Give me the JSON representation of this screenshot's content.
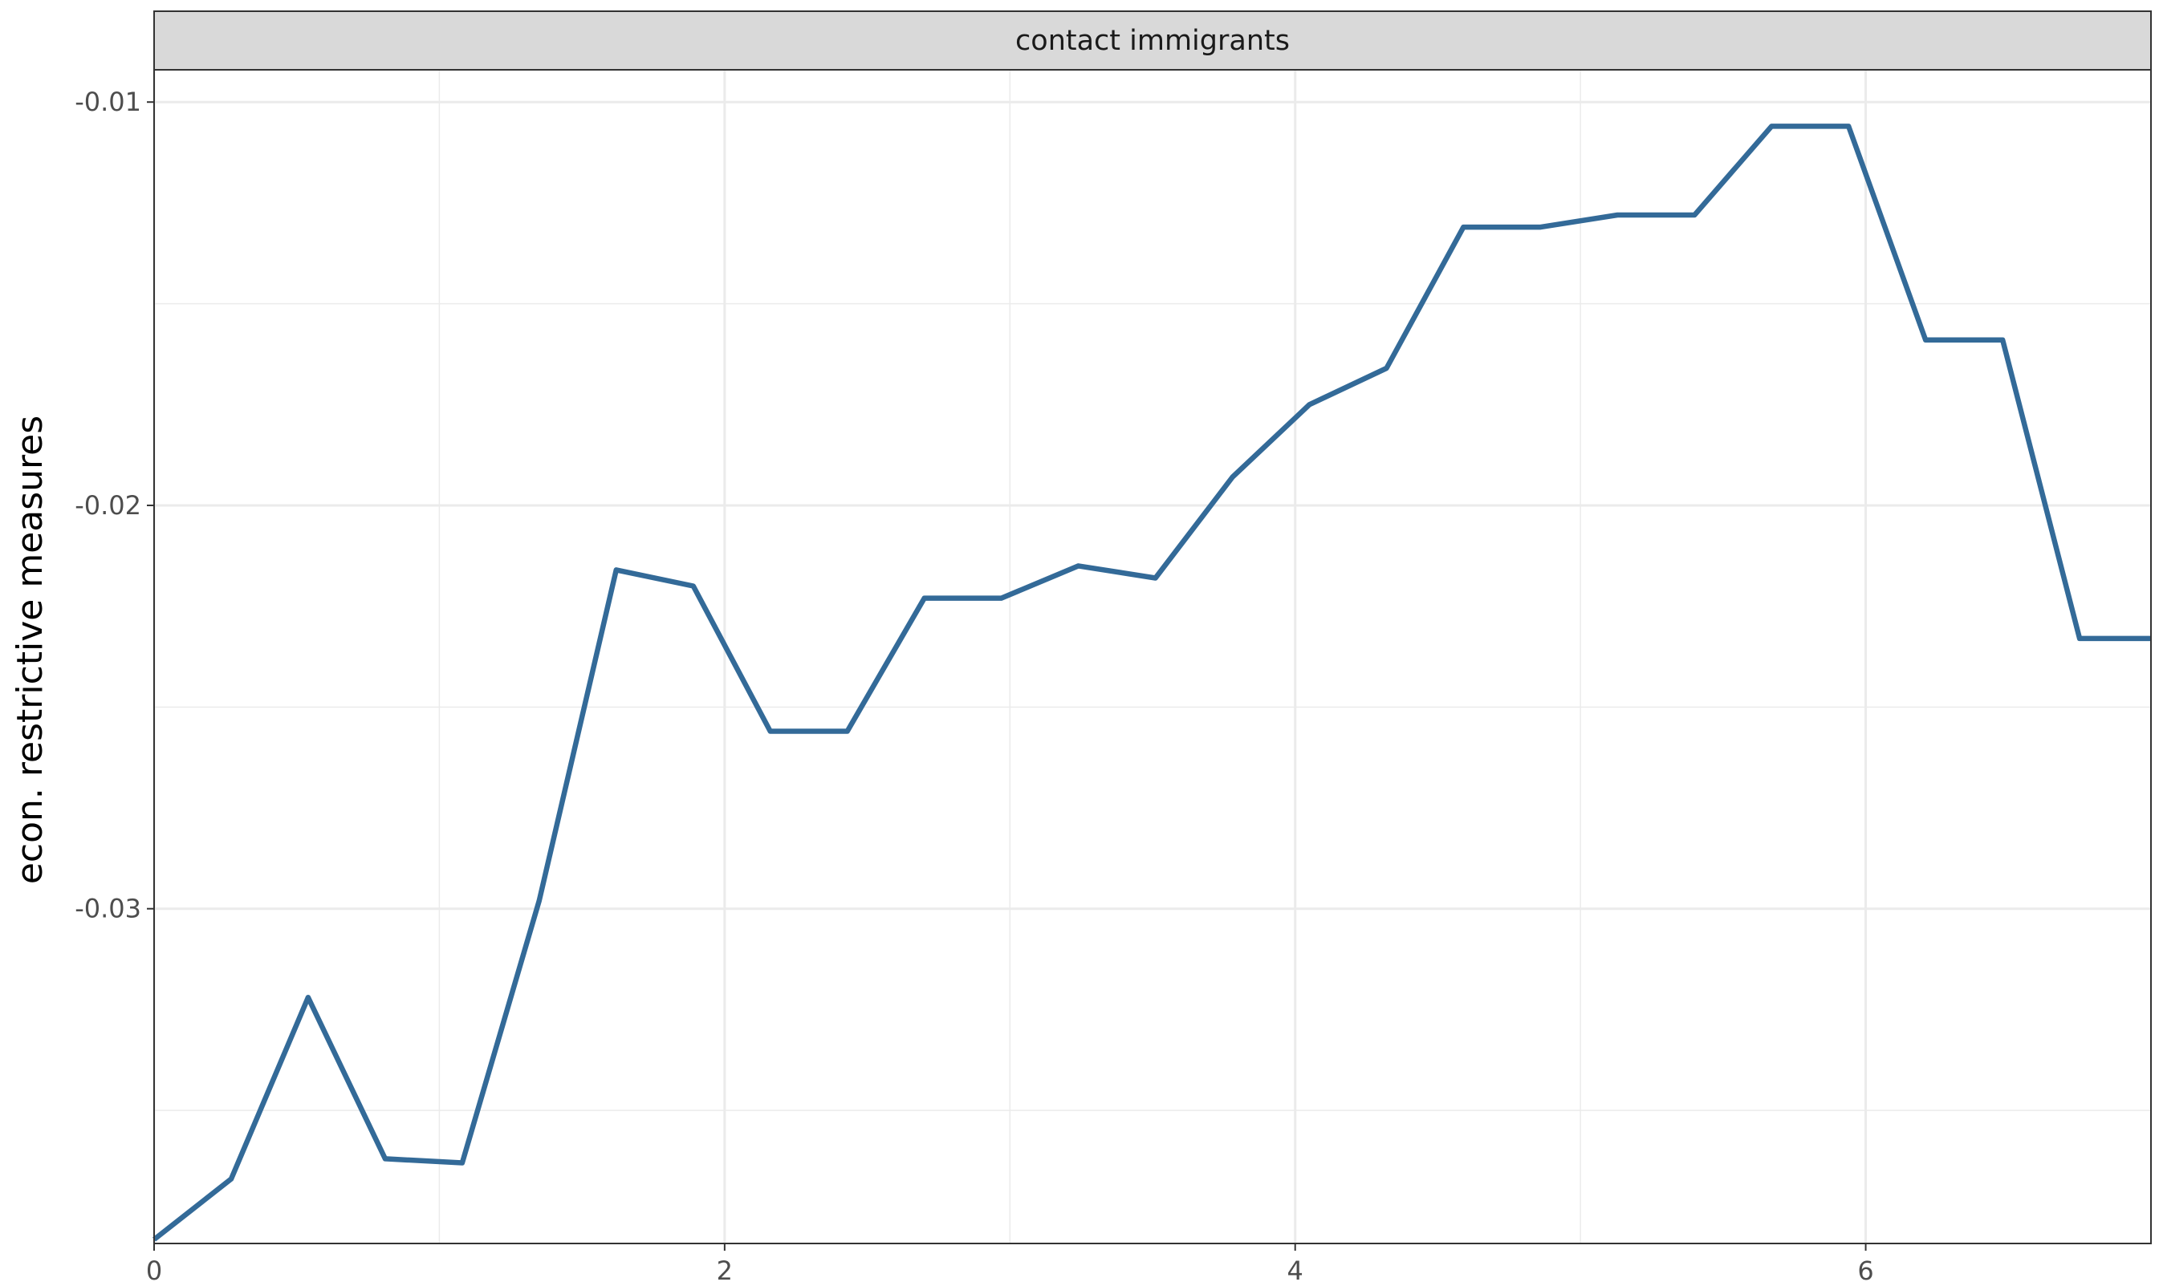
{
  "chart_data": {
    "type": "line",
    "facet_label": "contact immigrants",
    "xlabel": "",
    "ylabel": "econ. restrictive measures",
    "xlim": [
      0,
      7
    ],
    "ylim": [
      -0.0383,
      -0.0092
    ],
    "x_ticks": [
      0,
      2,
      4,
      6
    ],
    "x_tick_labels": [
      "0",
      "2",
      "4",
      "6"
    ],
    "x_minor_ticks": [
      1,
      3,
      5
    ],
    "y_ticks": [
      -0.03,
      -0.02,
      -0.01
    ],
    "y_tick_labels": [
      "-0.03",
      "-0.02",
      "-0.01"
    ],
    "y_minor_ticks": [
      -0.035,
      -0.025,
      -0.015
    ],
    "grid": true,
    "line_color": "#336a98",
    "series": [
      {
        "x": [
          0,
          0.27,
          0.54,
          0.81,
          1.08,
          1.35,
          1.62,
          1.89,
          2.16,
          2.43,
          2.7,
          2.97,
          3.24,
          3.51,
          3.78,
          4.05,
          4.32,
          4.59,
          4.86,
          5.13,
          5.4,
          5.67,
          5.94,
          6.21,
          6.48,
          6.75,
          7.0
        ],
        "y": [
          -0.0382,
          -0.0367,
          -0.0322,
          -0.0362,
          -0.0363,
          -0.0298,
          -0.0216,
          -0.022,
          -0.0256,
          -0.0256,
          -0.0223,
          -0.0223,
          -0.0215,
          -0.0218,
          -0.0193,
          -0.0175,
          -0.0166,
          -0.0131,
          -0.0131,
          -0.0128,
          -0.0128,
          -0.0106,
          -0.0106,
          -0.0159,
          -0.0159,
          -0.0233,
          -0.0233
        ]
      }
    ]
  }
}
